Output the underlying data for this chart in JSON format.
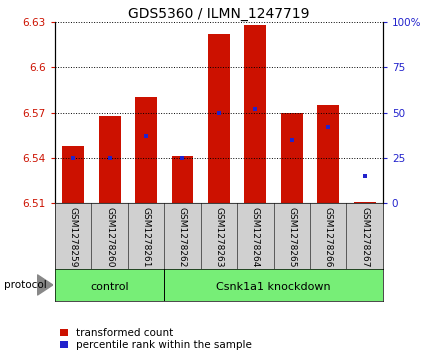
{
  "title": "GDS5360 / ILMN_1247719",
  "samples": [
    "GSM1278259",
    "GSM1278260",
    "GSM1278261",
    "GSM1278262",
    "GSM1278263",
    "GSM1278264",
    "GSM1278265",
    "GSM1278266",
    "GSM1278267"
  ],
  "bar_values": [
    6.548,
    6.568,
    6.58,
    6.541,
    6.622,
    6.628,
    6.57,
    6.575,
    6.511
  ],
  "bar_base": 6.51,
  "percentile_values": [
    25,
    25,
    37,
    25,
    50,
    52,
    35,
    42,
    15
  ],
  "ylim_left": [
    6.51,
    6.63
  ],
  "ylim_right": [
    0,
    100
  ],
  "yticks_left": [
    6.51,
    6.54,
    6.57,
    6.6,
    6.63
  ],
  "yticks_right": [
    0,
    25,
    50,
    75,
    100
  ],
  "ytick_labels_right": [
    "0",
    "25",
    "50",
    "75",
    "100%"
  ],
  "bar_color": "#cc1100",
  "dot_color": "#2222cc",
  "bar_width": 0.6,
  "groups": [
    {
      "label": "control",
      "n": 3
    },
    {
      "label": "Csnk1a1 knockdown",
      "n": 6
    }
  ],
  "legend_items": [
    {
      "label": "transformed count",
      "color": "#cc1100"
    },
    {
      "label": "percentile rank within the sample",
      "color": "#2222cc"
    }
  ],
  "protocol_label": "protocol",
  "sample_box_color": "#d0d0d0",
  "group_box_color": "#77ee77",
  "title_fontsize": 10,
  "tick_fontsize": 7.5,
  "sample_fontsize": 6.5,
  "group_fontsize": 8,
  "legend_fontsize": 7.5
}
